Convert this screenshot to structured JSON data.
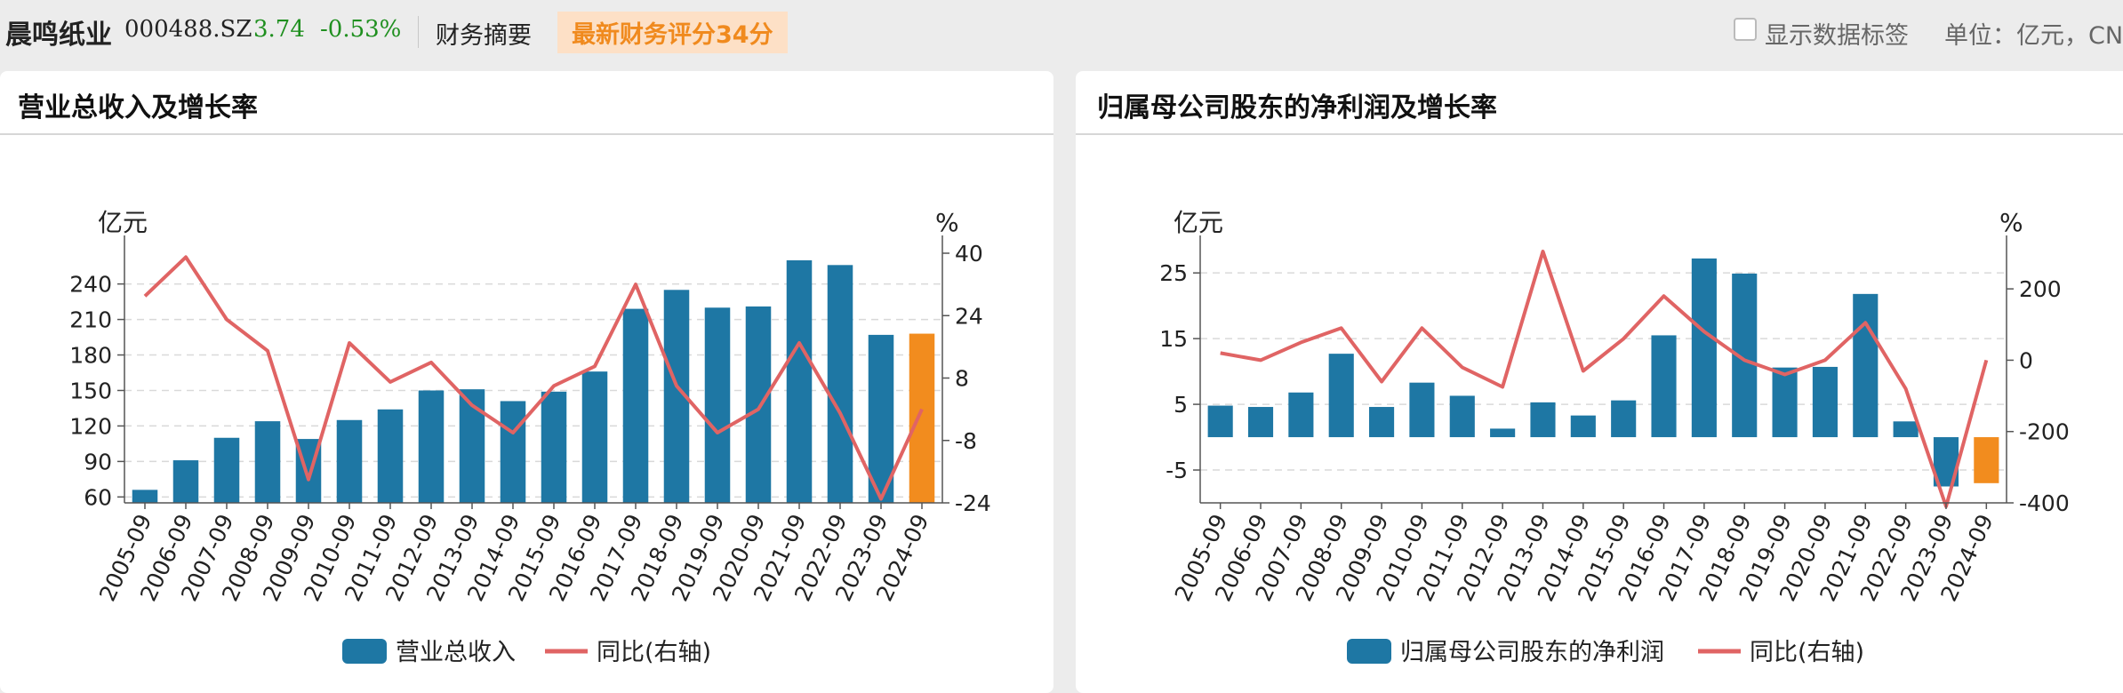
{
  "header": {
    "stock_name": "晨鸣纸业",
    "stock_code": "000488.SZ",
    "price": "3.74",
    "change_pct": "-0.53%",
    "summary_link": "财务摘要",
    "score_badge": "最新财务评分34分",
    "show_labels_option": "显示数据标签",
    "unit_text": "单位：亿元，CN"
  },
  "colors": {
    "bar": "#1e77a4",
    "bar_highlight": "#f28c1e",
    "line": "#e06464",
    "price_down": "#1f8f1f",
    "badge_bg": "#fde0c6",
    "badge_text": "#f08a1e"
  },
  "chart_data": [
    {
      "type": "bar",
      "title": "营业总收入及增长率",
      "ylabel": "亿元",
      "y2label": "%",
      "ylim": [
        55,
        266
      ],
      "y2lim": [
        -24,
        40
      ],
      "yticks": [
        60,
        90,
        120,
        150,
        180,
        210,
        240
      ],
      "y2ticks": [
        -24,
        -8,
        8,
        24,
        40
      ],
      "grid": true,
      "highlight_last": true,
      "categories": [
        "2005-09",
        "2006-09",
        "2007-09",
        "2008-09",
        "2009-09",
        "2010-09",
        "2011-09",
        "2012-09",
        "2013-09",
        "2014-09",
        "2015-09",
        "2016-09",
        "2017-09",
        "2018-09",
        "2019-09",
        "2020-09",
        "2021-09",
        "2022-09",
        "2023-09",
        "2024-09"
      ],
      "series": [
        {
          "name": "营业总收入",
          "type": "bar",
          "axis": "left",
          "values": [
            66,
            91,
            110,
            124,
            109,
            125,
            134,
            150,
            151,
            141,
            149,
            166,
            219,
            235,
            220,
            221,
            260,
            256,
            197,
            198
          ]
        },
        {
          "name": "同比(右轴)",
          "type": "line",
          "axis": "right",
          "values": [
            29,
            39,
            23,
            15,
            -18,
            17,
            7,
            12,
            1,
            -6,
            6,
            11,
            32,
            6,
            -6,
            0,
            17,
            -1,
            -23,
            0
          ]
        }
      ],
      "legend": "bottom"
    },
    {
      "type": "bar",
      "title": "归属母公司股东的净利润及增长率",
      "ylabel": "亿元",
      "y2label": "%",
      "ylim": [
        -10,
        28
      ],
      "y2lim": [
        -400,
        300
      ],
      "yticks": [
        -5,
        5,
        15,
        25
      ],
      "y2ticks": [
        -400,
        -200,
        0,
        200
      ],
      "grid": true,
      "highlight_last": true,
      "categories": [
        "2005-09",
        "2006-09",
        "2007-09",
        "2008-09",
        "2009-09",
        "2010-09",
        "2011-09",
        "2012-09",
        "2013-09",
        "2014-09",
        "2015-09",
        "2016-09",
        "2017-09",
        "2018-09",
        "2019-09",
        "2020-09",
        "2021-09",
        "2022-09",
        "2023-09",
        "2024-09"
      ],
      "series": [
        {
          "name": "归属母公司股东的净利润",
          "type": "bar",
          "axis": "left",
          "values": [
            4.8,
            4.6,
            6.8,
            12.7,
            4.6,
            8.3,
            6.3,
            1.3,
            5.3,
            3.3,
            5.6,
            15.5,
            27.2,
            24.9,
            10.6,
            10.7,
            21.8,
            2.4,
            -7.5,
            -7.0
          ]
        },
        {
          "name": "同比(右轴)",
          "type": "line",
          "axis": "right",
          "values": [
            20,
            0,
            50,
            90,
            -60,
            90,
            -20,
            -75,
            305,
            -30,
            60,
            180,
            80,
            0,
            -40,
            0,
            105,
            -80,
            -410,
            0
          ]
        }
      ],
      "legend": "bottom"
    }
  ]
}
